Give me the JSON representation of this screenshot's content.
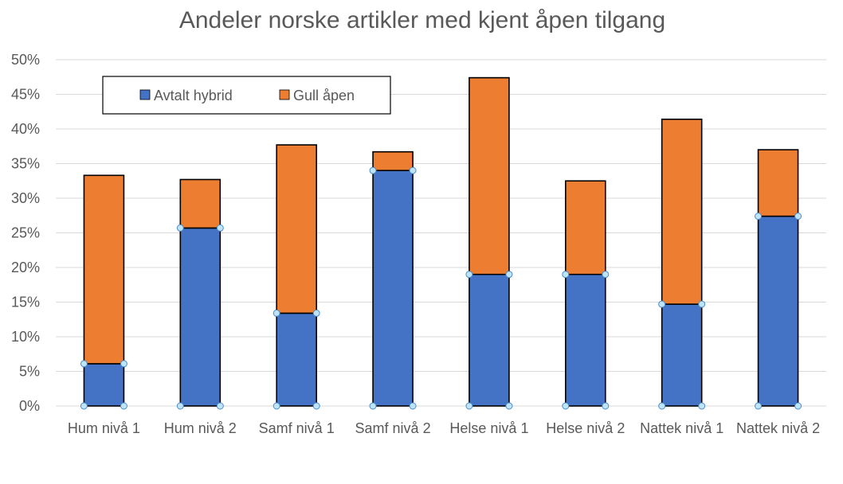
{
  "chart_data": {
    "type": "bar",
    "stacked": true,
    "title": "Andeler norske artikler med kjent åpen tilgang",
    "categories": [
      "Hum nivå 1",
      "Hum nivå 2",
      "Samf nivå 1",
      "Samf nivå 2",
      "Helse nivå 1",
      "Helse nivå 2",
      "Nattek nivå 1",
      "Nattek nivå 2"
    ],
    "series": [
      {
        "name": "Avtalt hybrid",
        "color": "#4472c4",
        "values": [
          6.1,
          25.7,
          13.4,
          34.0,
          19.0,
          19.0,
          14.7,
          27.4
        ]
      },
      {
        "name": "Gull åpen",
        "color": "#ed7d31",
        "values": [
          27.2,
          7.0,
          24.3,
          2.7,
          28.4,
          13.5,
          26.7,
          9.6
        ]
      }
    ],
    "ylim": [
      0,
      50
    ],
    "yticks": [
      "0%",
      "5%",
      "10%",
      "15%",
      "20%",
      "25%",
      "30%",
      "35%",
      "40%",
      "45%",
      "50%"
    ],
    "grid": true,
    "legend": "top-left",
    "xlabel": "",
    "ylabel": ""
  }
}
